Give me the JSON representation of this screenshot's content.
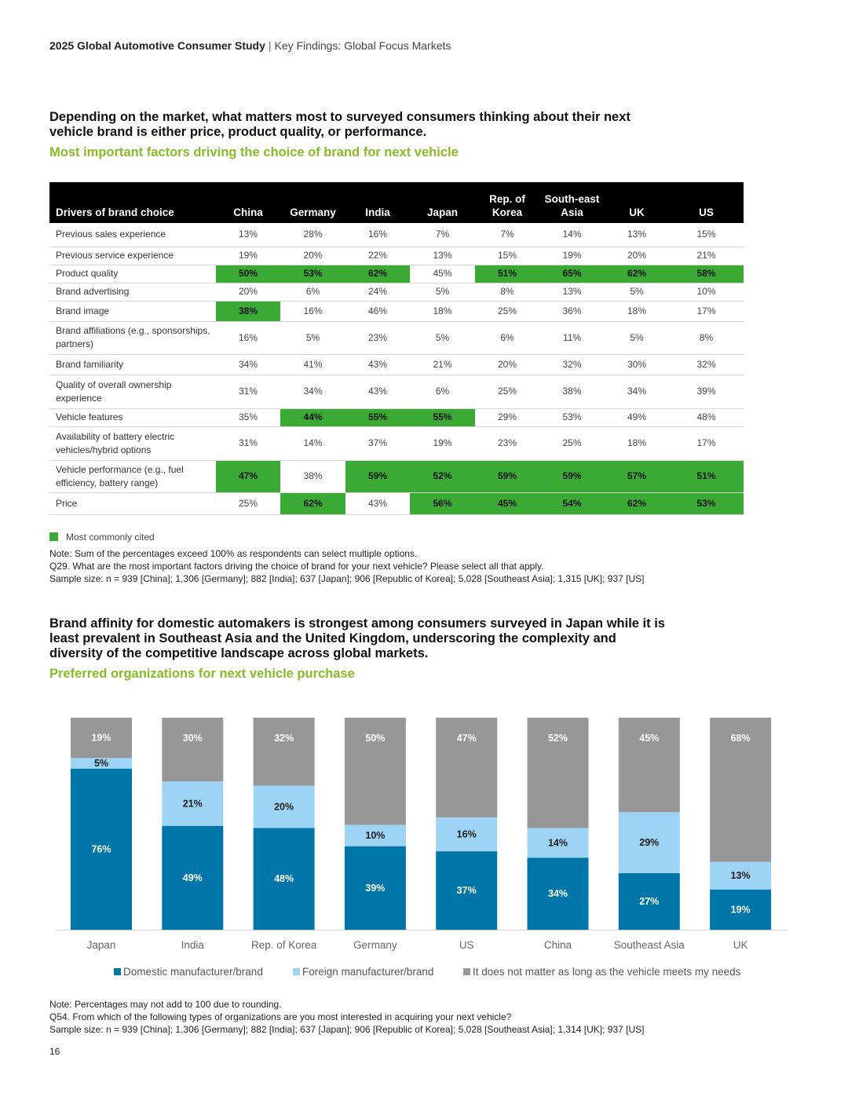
{
  "header": {
    "title": "2025 Global Automotive Consumer Study",
    "separator": "|",
    "subtitle": "Key Findings: Global Focus Markets"
  },
  "section1": {
    "heading": "Depending on the market, what matters most to surveyed consumers thinking about their next vehicle brand is either price, product quality, or performance.",
    "subheading": "Most important factors driving the choice of brand for next vehicle",
    "highlight_color": "#3aaa35",
    "table": {
      "type": "table",
      "columns": [
        "Drivers of brand choice",
        "China",
        "Germany",
        "India",
        "Japan",
        "Rep. of Korea",
        "South-east Asia",
        "UK",
        "US"
      ],
      "rows": [
        {
          "label": "Previous sales experience",
          "values": [
            "13%",
            "28%",
            "16%",
            "7%",
            "7%",
            "14%",
            "13%",
            "15%"
          ],
          "highlight": [
            false,
            false,
            false,
            false,
            false,
            false,
            false,
            false
          ]
        },
        {
          "label": "Previous service experience",
          "values": [
            "19%",
            "20%",
            "22%",
            "13%",
            "15%",
            "19%",
            "20%",
            "21%"
          ],
          "highlight": [
            false,
            false,
            false,
            false,
            false,
            false,
            false,
            false
          ]
        },
        {
          "label": "Product quality",
          "values": [
            "50%",
            "53%",
            "62%",
            "45%",
            "51%",
            "65%",
            "62%",
            "58%"
          ],
          "highlight": [
            true,
            true,
            true,
            false,
            true,
            true,
            true,
            true
          ]
        },
        {
          "label": "Brand advertising",
          "values": [
            "20%",
            "6%",
            "24%",
            "5%",
            "8%",
            "13%",
            "5%",
            "10%"
          ],
          "highlight": [
            false,
            false,
            false,
            false,
            false,
            false,
            false,
            false
          ]
        },
        {
          "label": "Brand image",
          "values": [
            "38%",
            "16%",
            "46%",
            "18%",
            "25%",
            "36%",
            "18%",
            "17%"
          ],
          "highlight": [
            true,
            false,
            false,
            false,
            false,
            false,
            false,
            false
          ]
        },
        {
          "label": "Brand affiliations (e.g., sponsorships, partners)",
          "values": [
            "16%",
            "5%",
            "23%",
            "5%",
            "6%",
            "11%",
            "5%",
            "8%"
          ],
          "highlight": [
            false,
            false,
            false,
            false,
            false,
            false,
            false,
            false
          ]
        },
        {
          "label": "Brand familiarity",
          "values": [
            "34%",
            "41%",
            "43%",
            "21%",
            "20%",
            "32%",
            "30%",
            "32%"
          ],
          "highlight": [
            false,
            false,
            false,
            false,
            false,
            false,
            false,
            false
          ]
        },
        {
          "label": "Quality of overall ownership experience",
          "values": [
            "31%",
            "34%",
            "43%",
            "6%",
            "25%",
            "38%",
            "34%",
            "39%"
          ],
          "highlight": [
            false,
            false,
            false,
            false,
            false,
            false,
            false,
            false
          ]
        },
        {
          "label": "Vehicle features",
          "values": [
            "35%",
            "44%",
            "55%",
            "55%",
            "29%",
            "53%",
            "49%",
            "48%"
          ],
          "highlight": [
            false,
            true,
            true,
            true,
            false,
            false,
            false,
            false
          ]
        },
        {
          "label": "Availability of battery electric vehicles/hybrid options",
          "values": [
            "31%",
            "14%",
            "37%",
            "19%",
            "23%",
            "25%",
            "18%",
            "17%"
          ],
          "highlight": [
            false,
            false,
            false,
            false,
            false,
            false,
            false,
            false
          ]
        },
        {
          "label": "Vehicle performance (e.g., fuel efficiency, battery range)",
          "values": [
            "47%",
            "38%",
            "59%",
            "52%",
            "59%",
            "59%",
            "57%",
            "51%"
          ],
          "highlight": [
            true,
            false,
            true,
            true,
            true,
            true,
            true,
            true
          ]
        },
        {
          "label": "Price",
          "values": [
            "25%",
            "62%",
            "43%",
            "56%",
            "45%",
            "54%",
            "62%",
            "53%"
          ],
          "highlight": [
            false,
            true,
            false,
            true,
            true,
            true,
            true,
            true
          ]
        }
      ]
    },
    "legend_label": "Most commonly cited",
    "notes": [
      "Note: Sum of the percentages exceed 100% as respondents can select multiple options.",
      "Q29. What are the most important factors driving the choice of brand for your next vehicle? Please select all that apply.",
      "Sample size: n = 939 [China]; 1,306 [Germany]; 882 [India]; 637 [Japan]; 906 [Republic of Korea]; 5,028 [Southeast Asia]; 1,315 [UK]; 937 [US]"
    ]
  },
  "section2": {
    "heading": "Brand affinity for domestic automakers is strongest among consumers surveyed in Japan while it is least prevalent in Southeast Asia and the United Kingdom, underscoring the complexity and diversity of the competitive landscape across global markets.",
    "subheading": "Preferred organizations for next vehicle purchase",
    "notes": [
      "Note: Percentages may not add to 100 due to rounding.",
      "Q54. From which of the following types of organizations are you most interested in acquiring your next vehicle?",
      "Sample size: n = 939 [China]; 1,306 [Germany]; 882 [India]; 637 [Japan]; 906 [Republic of Korea]; 5,028 [Southeast Asia]; 1,314 [UK]; 937 [US]"
    ]
  },
  "chart_data": {
    "type": "bar",
    "stacked": true,
    "title": "Preferred organizations for next vehicle purchase",
    "categories": [
      "Japan",
      "India",
      "Rep. of Korea",
      "Germany",
      "US",
      "China",
      "Southeast Asia",
      "UK"
    ],
    "series": [
      {
        "name": "Domestic manufacturer/brand",
        "color": "#0076a8",
        "values": [
          76,
          49,
          48,
          39,
          37,
          34,
          27,
          19
        ]
      },
      {
        "name": "Foreign manufacturer/brand",
        "color": "#9dd4f5",
        "values": [
          5,
          21,
          20,
          10,
          16,
          14,
          29,
          13
        ]
      },
      {
        "name": "It does not matter as long as the vehicle meets my needs",
        "color": "#979797",
        "values": [
          19,
          30,
          32,
          50,
          47,
          52,
          45,
          68
        ]
      }
    ],
    "ylim": [
      0,
      100
    ],
    "legend_position": "bottom"
  },
  "page_number": "16"
}
